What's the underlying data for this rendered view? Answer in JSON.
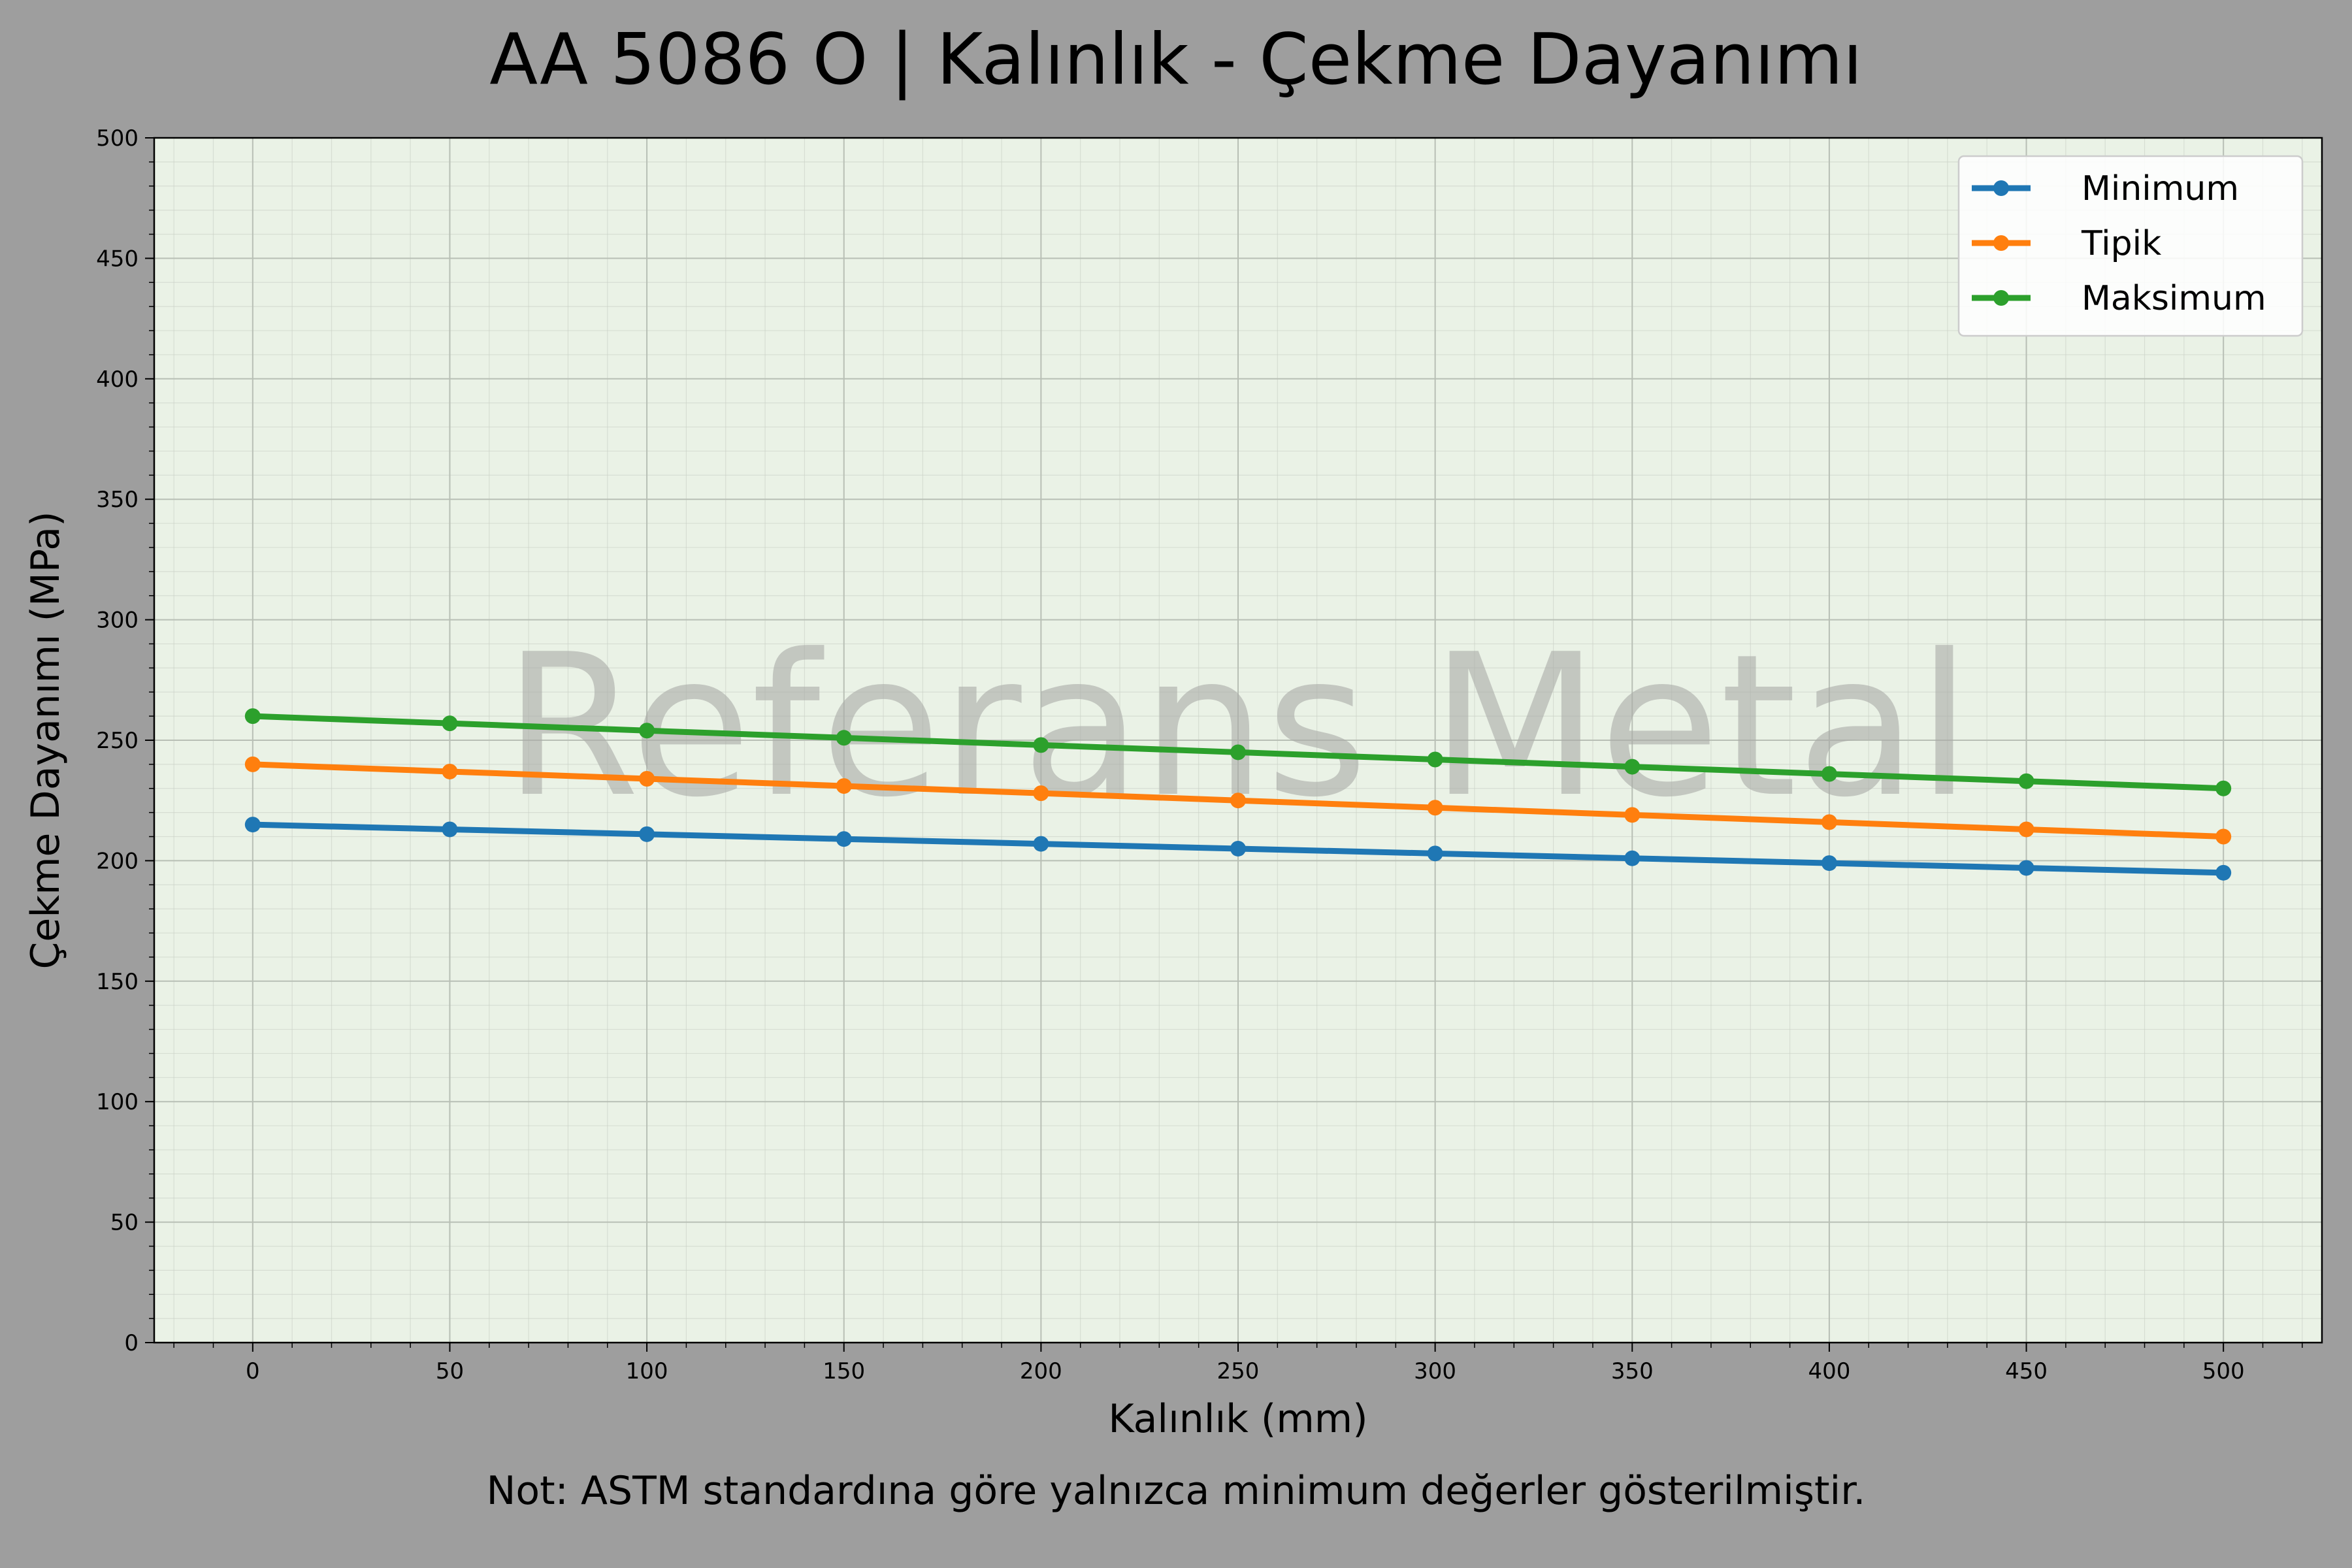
{
  "chart_data": {
    "type": "line",
    "title": "AA 5086 O | Kalınlık - Çekme Dayanımı",
    "xlabel": "Kalınlık (mm)",
    "ylabel": "Çekme Dayanımı (MPa)",
    "note": "Not: ASTM standardına göre yalnızca minimum değerler gösterilmiştir.",
    "watermark": "Referans Metal",
    "xlim": [
      -25,
      525
    ],
    "ylim": [
      0,
      500
    ],
    "xticks": [
      0,
      50,
      100,
      150,
      200,
      250,
      300,
      350,
      400,
      450,
      500
    ],
    "yticks": [
      0,
      50,
      100,
      150,
      200,
      250,
      300,
      350,
      400,
      450,
      500
    ],
    "grid": true,
    "legend_position": "top-right",
    "x": [
      0,
      50,
      100,
      150,
      200,
      250,
      300,
      350,
      400,
      450,
      500
    ],
    "series": [
      {
        "name": "Minimum",
        "color": "#1f77b4",
        "values": [
          215,
          213,
          211,
          209,
          207,
          205,
          203,
          201,
          199,
          197,
          195
        ]
      },
      {
        "name": "Tipik",
        "color": "#ff7f0e",
        "values": [
          240,
          237,
          234,
          231,
          228,
          225,
          222,
          219,
          216,
          213,
          210
        ]
      },
      {
        "name": "Maksimum",
        "color": "#2ca02c",
        "values": [
          260,
          257,
          254,
          251,
          248,
          245,
          242,
          239,
          236,
          233,
          230
        ]
      }
    ],
    "colors": {
      "background": "#9e9e9e",
      "plot_background": "#eaf2e6",
      "watermark": "#a8aaa6"
    }
  }
}
